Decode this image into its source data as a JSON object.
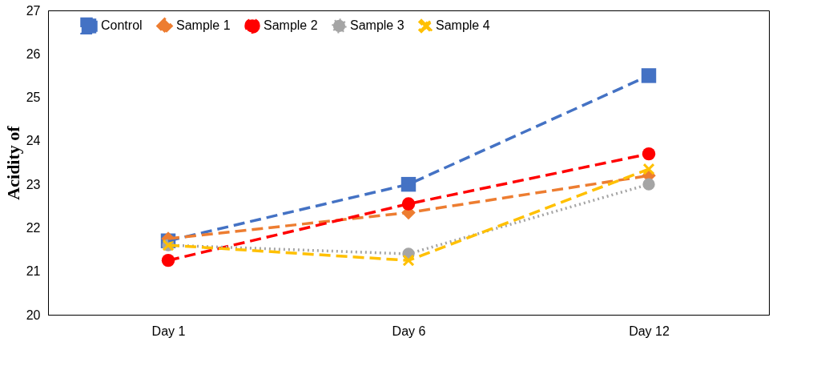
{
  "chart_data": {
    "type": "line",
    "ylabel": "Acidity of",
    "categories": [
      "Day 1",
      "Day 6",
      "Day 12"
    ],
    "ylim": [
      20,
      27
    ],
    "yticks": [
      20,
      21,
      22,
      23,
      24,
      25,
      26,
      27
    ],
    "grid": false,
    "legend": "top",
    "series": [
      {
        "name": "Control",
        "color": "#4472c4",
        "values": [
          21.7,
          23.0,
          25.5
        ],
        "marker": "square",
        "line_style": "dashed"
      },
      {
        "name": "Sample 1",
        "color": "#ed7d31",
        "values": [
          21.75,
          22.35,
          23.2
        ],
        "marker": "diamond",
        "line_style": "dashed"
      },
      {
        "name": "Sample 2",
        "color": "#ff0000",
        "values": [
          21.25,
          22.55,
          23.7
        ],
        "marker": "circle",
        "line_style": "dashed"
      },
      {
        "name": "Sample 3",
        "color": "#a5a5a5",
        "values": [
          21.6,
          21.4,
          23.0
        ],
        "marker": "circle",
        "line_style": "dotted"
      },
      {
        "name": "Sample 4",
        "color": "#ffc000",
        "values": [
          21.6,
          21.25,
          23.35
        ],
        "marker": "cross",
        "line_style": "dashed"
      }
    ]
  }
}
